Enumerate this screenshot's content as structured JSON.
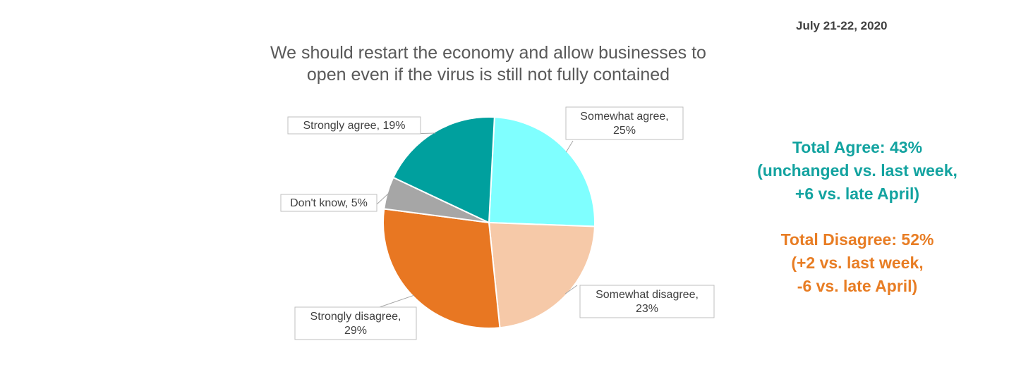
{
  "date": "July 21-22, 2020",
  "title_lines": [
    "We should restart the economy and allow businesses to",
    "open even if the virus is still not fully contained"
  ],
  "summary": {
    "agree": [
      "Total Agree: 43%",
      "(unchanged vs. last week,",
      "+6 vs. late April)"
    ],
    "disagree": [
      "Total Disagree: 52%",
      "(+2 vs. last week,",
      "-6 vs. late April)"
    ]
  },
  "chart_data": {
    "type": "pie",
    "title": "We should restart the economy and allow businesses to open even if the virus is still not fully contained",
    "slices": [
      {
        "label": "Somewhat agree",
        "value": 25,
        "color": "#7fffff",
        "label_lines": [
          "Somewhat agree,",
          "25%"
        ]
      },
      {
        "label": "Somewhat disagree",
        "value": 23,
        "color": "#f6c9a8",
        "label_lines": [
          "Somewhat disagree,",
          "23%"
        ]
      },
      {
        "label": "Strongly disagree",
        "value": 29,
        "color": "#e87722",
        "label_lines": [
          "Strongly disagree,",
          "29%"
        ]
      },
      {
        "label": "Don't know",
        "value": 5,
        "color": "#a6a6a6",
        "label_lines": [
          "Don't know, 5%"
        ]
      },
      {
        "label": "Strongly agree",
        "value": 19,
        "color": "#00a09e",
        "label_lines": [
          "Strongly agree, 19%"
        ]
      }
    ]
  }
}
